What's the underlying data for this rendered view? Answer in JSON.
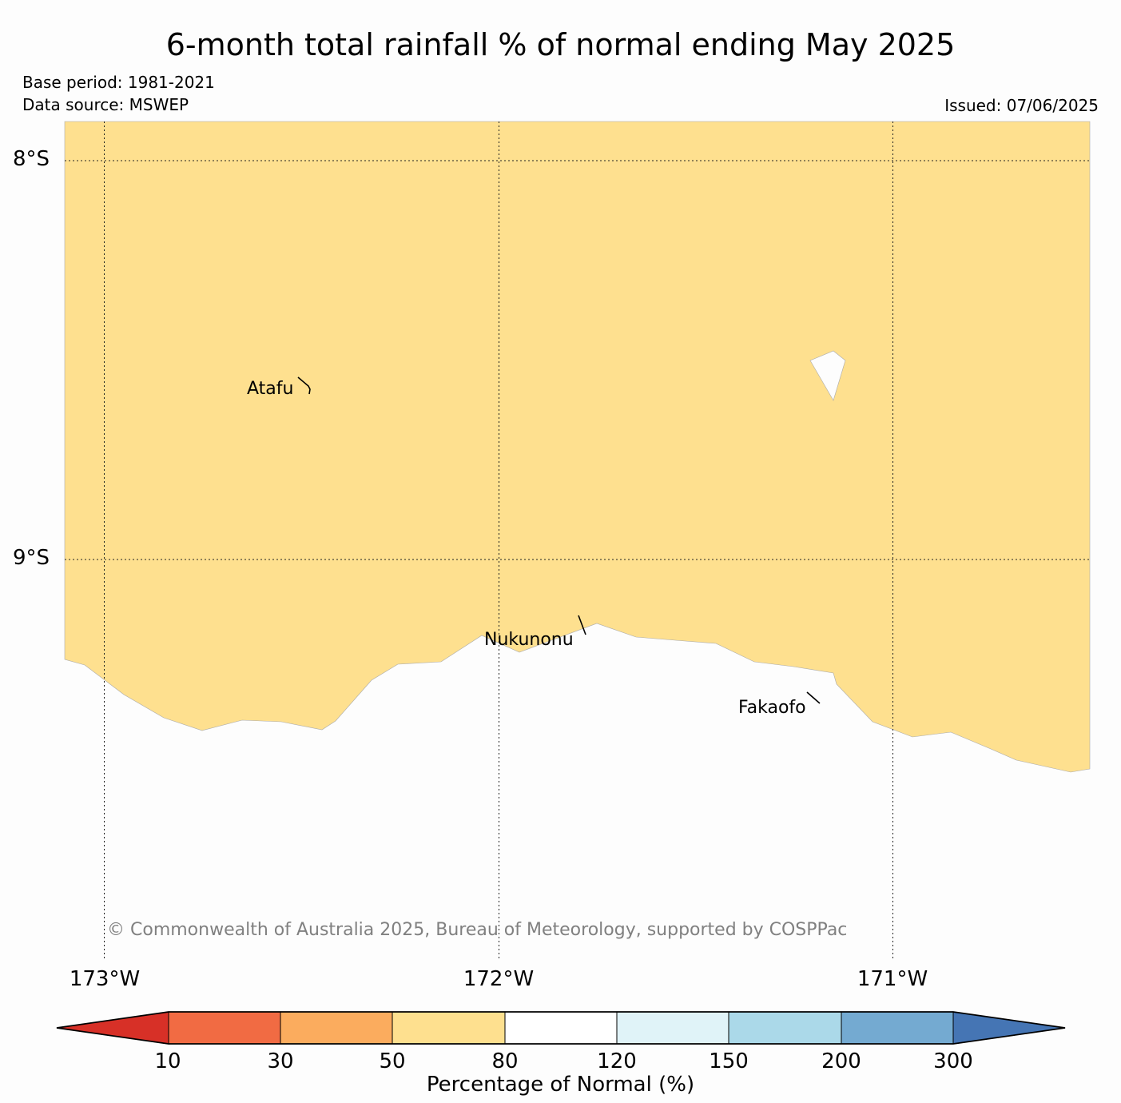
{
  "title": "6-month total rainfall % of normal ending May 2025",
  "base_period": "Base period: 1981-2021",
  "data_source": "Data source: MSWEP",
  "issued": "Issued: 07/06/2025",
  "copyright": "© Commonwealth of Australia 2025, Bureau of Meteorology, supported by COSPPac",
  "latitude_labels": [
    "8°S",
    "9°S"
  ],
  "longitude_labels": [
    "173°W",
    "172°W",
    "171°W"
  ],
  "places": [
    "Atafu",
    "Nukunonu",
    "Fakaofo"
  ],
  "rainfall_category_shown": "50–80",
  "colorbar": {
    "label": "Percentage of Normal (%)",
    "ticks": [
      "10",
      "30",
      "50",
      "80",
      "120",
      "150",
      "200",
      "300"
    ],
    "colors": [
      "#d73027",
      "#f16b43",
      "#fbac5e",
      "#fee08f",
      "#ffffff",
      "#e0f3f8",
      "#abd9e9",
      "#74aad1",
      "#4575b4"
    ]
  }
}
